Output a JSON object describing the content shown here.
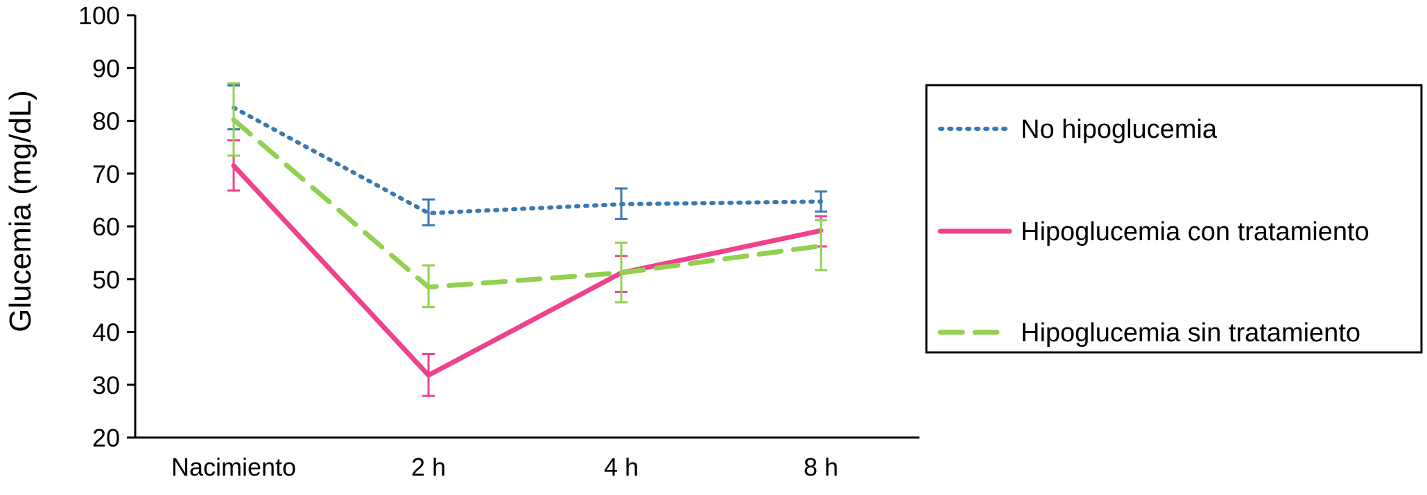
{
  "chart_data": {
    "type": "line",
    "title": "",
    "xlabel": "",
    "ylabel": "Glucemia (mg/dL)",
    "ylim": [
      20,
      100
    ],
    "yticks": [
      "20",
      "30",
      "40",
      "50",
      "60",
      "70",
      "80",
      "90",
      "100"
    ],
    "categories": [
      "Nacimiento",
      "2 h",
      "4 h",
      "8 h"
    ],
    "grid": false,
    "legend_position": "right",
    "series": [
      {
        "name": "No hipoglucemia",
        "color": "#3a78b0",
        "style": "dotted",
        "values": [
          82.5,
          62.5,
          64.2,
          64.7
        ],
        "error_low": [
          78.4,
          60.2,
          61.4,
          62.8
        ],
        "error_high": [
          86.7,
          65.1,
          67.2,
          66.6
        ]
      },
      {
        "name": "Hipoglucemia con tratamiento",
        "color": "#f0418c",
        "style": "solid",
        "values": [
          71.5,
          31.8,
          51.2,
          59.2
        ],
        "error_low": [
          66.8,
          27.9,
          47.6,
          56.2
        ],
        "error_high": [
          76.3,
          35.8,
          54.4,
          61.9
        ]
      },
      {
        "name": "Hipoglucemia sin tratamiento",
        "color": "#92d050",
        "style": "dashed",
        "values": [
          80.2,
          48.5,
          51.2,
          56.3
        ],
        "error_low": [
          73.4,
          44.7,
          45.6,
          51.7
        ],
        "error_high": [
          87.1,
          52.6,
          56.9,
          61.2
        ]
      }
    ]
  }
}
